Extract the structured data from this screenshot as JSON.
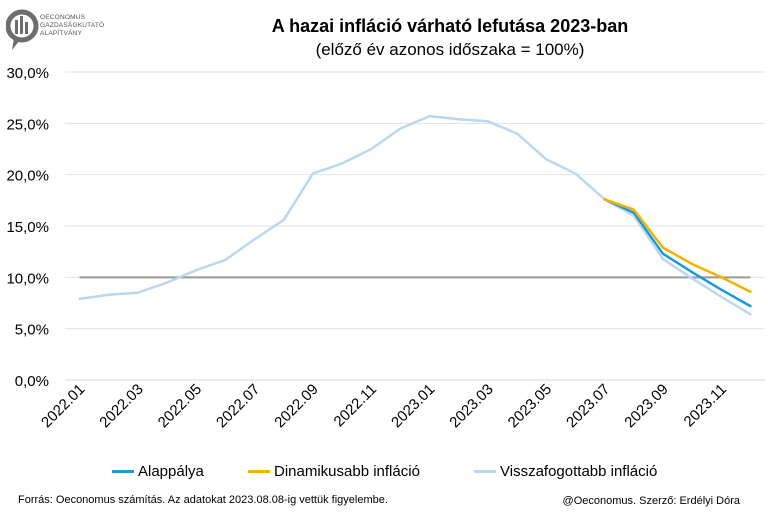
{
  "header": {
    "title": "A hazai infláció várható lefutása 2023-ban",
    "subtitle": "(előző év azonos időszaka = 100%)"
  },
  "logo": {
    "line1": "OECONOMUS",
    "line2": "GAZDASÁGKUTATÓ",
    "line3": "ALAPÍTVÁNY"
  },
  "footer": {
    "source": "Forrás: Oeconomus számítás. Az adatokat 2023.08.08-ig vettük figyelembe.",
    "credit": "@Oeconomus. Szerző: Erdélyi Dóra"
  },
  "colors": {
    "alappalya": "#1a9bd7",
    "dinamikusabb": "#f0b400",
    "visszafogottabb": "#bcd7ee",
    "reference": "#999999"
  },
  "chart_data": {
    "type": "line",
    "x": [
      "2022.01",
      "2022.02",
      "2022.03",
      "2022.04",
      "2022.05",
      "2022.06",
      "2022.07",
      "2022.08",
      "2022.09",
      "2022.10",
      "2022.11",
      "2022.12",
      "2023.01",
      "2023.02",
      "2023.03",
      "2023.04",
      "2023.05",
      "2023.06",
      "2023.07",
      "2023.08",
      "2023.09",
      "2023.10",
      "2023.11",
      "2023.12"
    ],
    "xtick_labels": [
      "2022.01",
      "2022.03",
      "2022.05",
      "2022.07",
      "2022.09",
      "2022.11",
      "2023.01",
      "2023.03",
      "2023.05",
      "2023.07",
      "2023.09",
      "2023.11"
    ],
    "ylim": [
      0,
      30
    ],
    "yticks": [
      "0,0%",
      "5,0%",
      "10,0%",
      "15,0%",
      "20,0%",
      "25,0%",
      "30,0%"
    ],
    "reference_line": 10,
    "series": [
      {
        "name": "Visszafogottabb infláció",
        "color": "#bcd7ee",
        "values": [
          7.9,
          8.3,
          8.5,
          9.5,
          10.7,
          11.7,
          13.7,
          15.6,
          20.1,
          21.1,
          22.5,
          24.5,
          25.7,
          25.4,
          25.2,
          24.0,
          21.5,
          20.1,
          17.6,
          16.0,
          11.8,
          9.9,
          8.1,
          6.4
        ]
      },
      {
        "name": "Alappálya",
        "color": "#1a9bd7",
        "values": [
          null,
          null,
          null,
          null,
          null,
          null,
          null,
          null,
          null,
          null,
          null,
          null,
          null,
          null,
          null,
          null,
          null,
          null,
          17.6,
          16.3,
          12.3,
          10.5,
          8.8,
          7.2
        ]
      },
      {
        "name": "Dinamikusabb infláció",
        "color": "#f0b400",
        "values": [
          null,
          null,
          null,
          null,
          null,
          null,
          null,
          null,
          null,
          null,
          null,
          null,
          null,
          null,
          null,
          null,
          null,
          null,
          17.6,
          16.6,
          12.9,
          11.3,
          10.0,
          8.6
        ]
      }
    ],
    "legend": [
      "Alappálya",
      "Dinamikusabb infláció",
      "Visszafogottabb infláció"
    ]
  }
}
